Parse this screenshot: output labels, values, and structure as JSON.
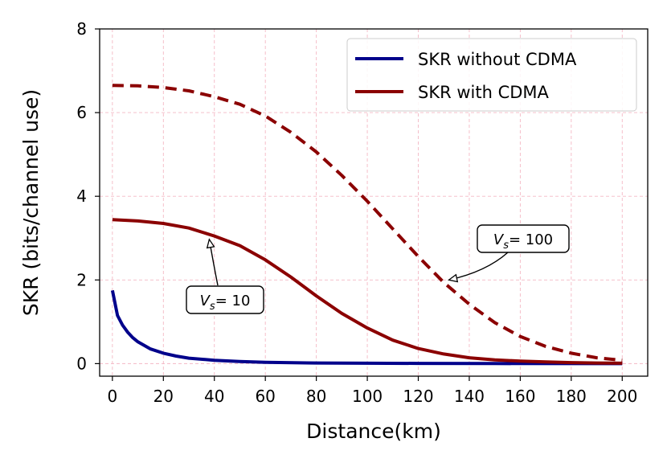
{
  "chart_data": {
    "type": "line",
    "title": "",
    "xlabel": "Distance(km)",
    "ylabel": "SKR (bits/channel use)",
    "xlim": [
      -5,
      210
    ],
    "ylim": [
      -0.3,
      8
    ],
    "xticks": [
      0,
      20,
      40,
      60,
      80,
      100,
      120,
      140,
      160,
      180,
      200
    ],
    "yticks": [
      0,
      2,
      4,
      6,
      8
    ],
    "grid": true,
    "legend_position": "top-right",
    "legend": [
      "SKR without CDMA",
      "SKR with CDMA"
    ],
    "colors": {
      "without_cdma": "#00008B",
      "with_cdma": "#8B0000",
      "grid": "#f4b8c4"
    },
    "series": [
      {
        "name": "SKR without CDMA",
        "style": "solid",
        "color": "#00008B",
        "x": [
          0,
          2,
          4,
          6,
          8,
          10,
          15,
          20,
          25,
          30,
          40,
          50,
          60,
          80,
          100,
          120,
          150,
          200
        ],
        "y": [
          1.75,
          1.15,
          0.92,
          0.75,
          0.62,
          0.52,
          0.35,
          0.25,
          0.18,
          0.13,
          0.08,
          0.05,
          0.03,
          0.015,
          0.01,
          0.005,
          0.002,
          0.0
        ]
      },
      {
        "name": "SKR with CDMA (Vs=10)",
        "style": "solid",
        "color": "#8B0000",
        "x": [
          0,
          10,
          20,
          30,
          40,
          50,
          60,
          70,
          80,
          90,
          100,
          110,
          120,
          130,
          140,
          150,
          160,
          170,
          180,
          190,
          200
        ],
        "y": [
          3.44,
          3.41,
          3.35,
          3.24,
          3.05,
          2.82,
          2.48,
          2.07,
          1.62,
          1.2,
          0.85,
          0.56,
          0.36,
          0.23,
          0.14,
          0.09,
          0.06,
          0.04,
          0.025,
          0.015,
          0.01
        ]
      },
      {
        "name": "SKR with CDMA (Vs=100)",
        "style": "dashed",
        "color": "#8B0000",
        "x": [
          0,
          10,
          20,
          30,
          40,
          50,
          60,
          70,
          80,
          90,
          100,
          110,
          120,
          130,
          140,
          150,
          160,
          170,
          180,
          190,
          200
        ],
        "y": [
          6.65,
          6.64,
          6.6,
          6.52,
          6.38,
          6.2,
          5.92,
          5.53,
          5.06,
          4.5,
          3.88,
          3.22,
          2.56,
          1.94,
          1.42,
          0.98,
          0.65,
          0.41,
          0.25,
          0.14,
          0.08
        ]
      }
    ],
    "annotations": [
      {
        "label": "V",
        "subscript": "s",
        "value_text": "= 10",
        "points_to": {
          "x": 38,
          "y": 2.97
        }
      },
      {
        "label": "V",
        "subscript": "s",
        "value_text": "= 100",
        "points_to": {
          "x": 132,
          "y": 2.0
        }
      }
    ]
  }
}
